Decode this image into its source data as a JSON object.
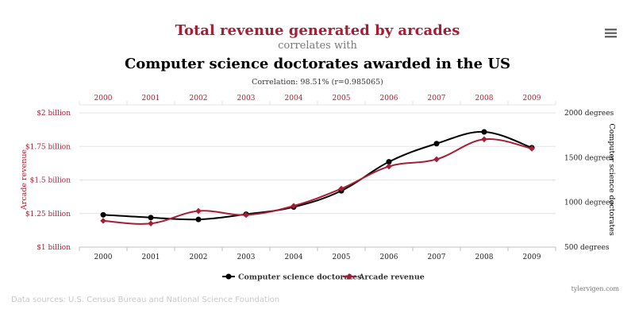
{
  "header": {
    "title": "Total revenue generated by arcades",
    "subtitle": "correlates with",
    "second_title": "Computer science doctorates awarded in the US",
    "correlation": "Correlation: 98.51% (r=0.985065)"
  },
  "menu": {
    "icon": "hamburger-menu-icon"
  },
  "colors": {
    "red": "#a51e36",
    "black": "#000000",
    "gray_text": "#444444",
    "grid": "#e3e3e3",
    "subtitle": "#777777",
    "sources": "#c8c8c8"
  },
  "chart_data": {
    "type": "line",
    "categories": [
      "2000",
      "2001",
      "2002",
      "2003",
      "2004",
      "2005",
      "2006",
      "2007",
      "2008",
      "2009"
    ],
    "series": [
      {
        "name": "Computer science doctorates",
        "axis": "right",
        "color": "#000000",
        "marker": "circle",
        "values": [
          861,
          830,
          809,
          867,
          948,
          1129,
          1453,
          1656,
          1787,
          1611
        ]
      },
      {
        "name": "Arcade revenue",
        "axis": "left",
        "color": "#a51e36",
        "marker": "diamond",
        "values": [
          1.196,
          1.176,
          1.269,
          1.24,
          1.307,
          1.435,
          1.601,
          1.654,
          1.803,
          1.734
        ]
      }
    ],
    "y_left": {
      "label": "Arcade revenue",
      "range": [
        1,
        2
      ],
      "ticks": [
        1,
        1.25,
        1.5,
        1.75,
        2
      ],
      "tick_labels": [
        "$1 billion",
        "$1.25 billion",
        "$1.5 billion",
        "$1.75 billion",
        "$2 billion"
      ]
    },
    "y_right": {
      "label": "Computer science doctorates",
      "range": [
        500,
        2000
      ],
      "ticks": [
        500,
        1000,
        1500,
        2000
      ],
      "tick_labels": [
        "500 degrees",
        "1000 degrees",
        "1500 degrees",
        "2000 degrees"
      ]
    },
    "grid": true,
    "legend": "bottom-center"
  },
  "footer": {
    "credit": "tylervigen.com",
    "sources": "Data sources: U.S. Census Bureau and National Science Foundation"
  }
}
